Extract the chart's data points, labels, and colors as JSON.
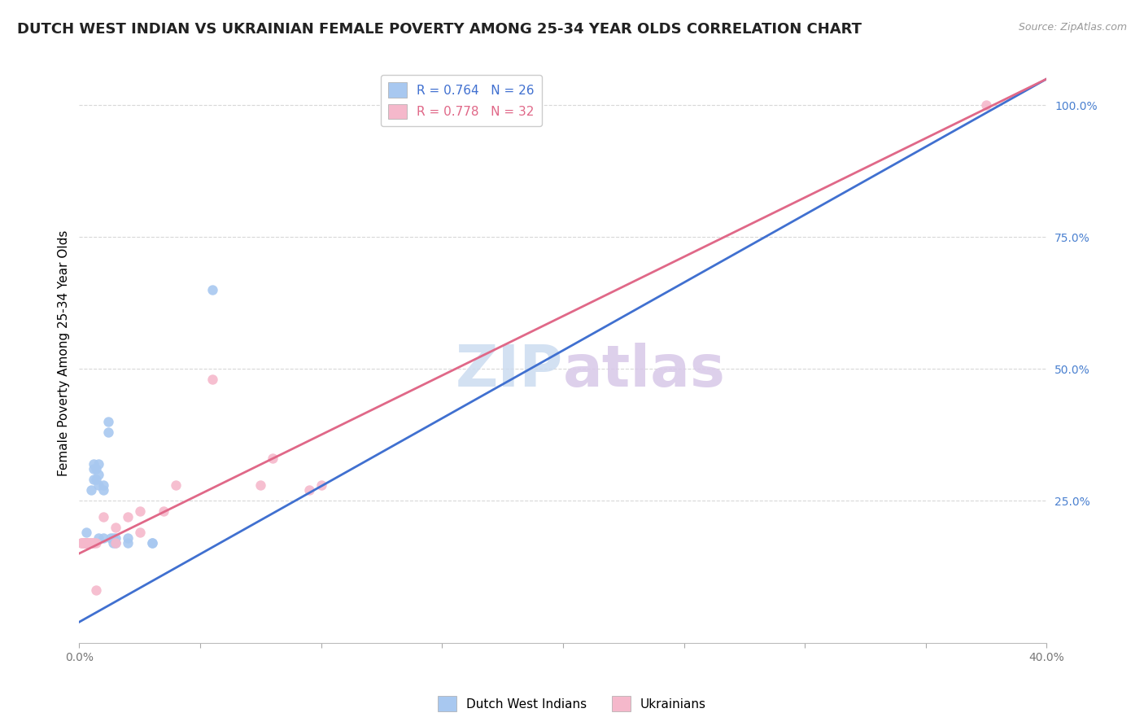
{
  "title": "DUTCH WEST INDIAN VS UKRAINIAN FEMALE POVERTY AMONG 25-34 YEAR OLDS CORRELATION CHART",
  "source": "Source: ZipAtlas.com",
  "ylabel": "Female Poverty Among 25-34 Year Olds",
  "xmin": 0.0,
  "xmax": 0.4,
  "ymin": -0.02,
  "ymax": 1.08,
  "xticks": [
    0.0,
    0.05,
    0.1,
    0.15,
    0.2,
    0.25,
    0.3,
    0.35,
    0.4
  ],
  "ytick_positions": [
    0.25,
    0.5,
    0.75,
    1.0
  ],
  "ytick_labels": [
    "25.0%",
    "50.0%",
    "75.0%",
    "100.0%"
  ],
  "xtick_labels": [
    "0.0%",
    "",
    "",
    "",
    "",
    "",
    "",
    "",
    "40.0%"
  ],
  "blue_R": 0.764,
  "blue_N": 26,
  "pink_R": 0.778,
  "pink_N": 32,
  "blue_color": "#a8c8f0",
  "pink_color": "#f5b8cb",
  "blue_line_color": "#4070d0",
  "pink_line_color": "#e06888",
  "legend_label_blue": "Dutch West Indians",
  "legend_label_pink": "Ukrainians",
  "watermark_zip": "ZIP",
  "watermark_atlas": "atlas",
  "blue_scatter_x": [
    0.003,
    0.005,
    0.006,
    0.006,
    0.006,
    0.007,
    0.007,
    0.008,
    0.008,
    0.008,
    0.008,
    0.01,
    0.01,
    0.01,
    0.012,
    0.012,
    0.013,
    0.014,
    0.014,
    0.015,
    0.015,
    0.02,
    0.02,
    0.03,
    0.03,
    0.055
  ],
  "blue_scatter_y": [
    0.19,
    0.27,
    0.29,
    0.31,
    0.32,
    0.29,
    0.31,
    0.28,
    0.3,
    0.32,
    0.18,
    0.27,
    0.28,
    0.18,
    0.38,
    0.4,
    0.18,
    0.18,
    0.17,
    0.17,
    0.18,
    0.17,
    0.18,
    0.17,
    0.17,
    0.65
  ],
  "pink_scatter_x": [
    0.001,
    0.001,
    0.002,
    0.002,
    0.002,
    0.003,
    0.003,
    0.003,
    0.003,
    0.003,
    0.004,
    0.004,
    0.005,
    0.005,
    0.006,
    0.006,
    0.007,
    0.007,
    0.01,
    0.015,
    0.015,
    0.02,
    0.025,
    0.025,
    0.035,
    0.04,
    0.055,
    0.075,
    0.08,
    0.095,
    0.1,
    0.375
  ],
  "pink_scatter_y": [
    0.17,
    0.17,
    0.17,
    0.17,
    0.17,
    0.17,
    0.17,
    0.17,
    0.17,
    0.17,
    0.17,
    0.17,
    0.17,
    0.17,
    0.17,
    0.17,
    0.17,
    0.08,
    0.22,
    0.2,
    0.17,
    0.22,
    0.23,
    0.19,
    0.23,
    0.28,
    0.48,
    0.28,
    0.33,
    0.27,
    0.28,
    1.0
  ],
  "blue_line_x0": 0.0,
  "blue_line_x1": 0.4,
  "blue_line_y0": 0.02,
  "blue_line_y1": 1.05,
  "pink_line_x0": 0.0,
  "pink_line_x1": 0.4,
  "pink_line_y0": 0.15,
  "pink_line_y1": 1.05,
  "grid_color": "#d8d8d8",
  "background_color": "#ffffff",
  "title_fontsize": 13,
  "axis_label_fontsize": 11,
  "tick_fontsize": 10,
  "marker_size": 80
}
